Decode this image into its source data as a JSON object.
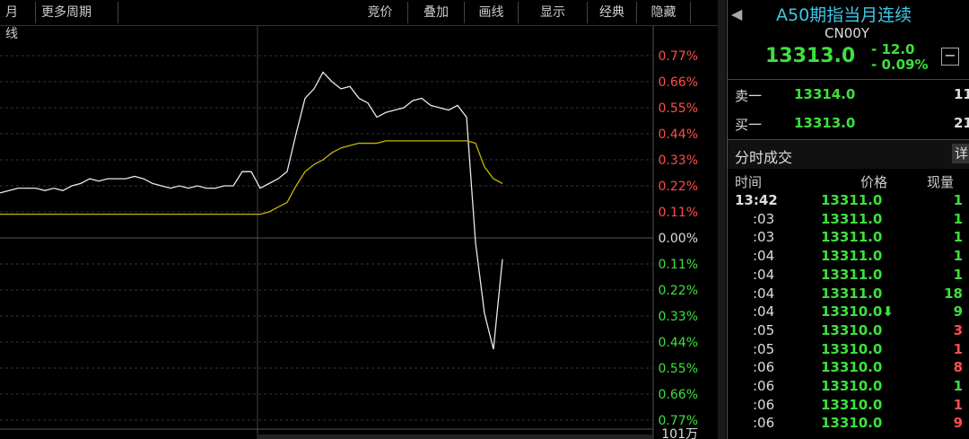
{
  "toolbar": {
    "left": [
      "月线",
      "更多周期"
    ],
    "right": [
      "竞价",
      "叠加",
      "画线",
      "显示",
      "经典",
      "隐藏"
    ]
  },
  "chart_data": {
    "type": "line",
    "series": [
      {
        "name": null,
        "color": "#e8e8e8",
        "values": [
          0.19,
          0.2,
          0.21,
          0.21,
          0.21,
          0.2,
          0.21,
          0.2,
          0.22,
          0.23,
          0.25,
          0.24,
          0.25,
          0.25,
          0.25,
          0.26,
          0.25,
          0.23,
          0.22,
          0.21,
          0.22,
          0.21,
          0.22,
          0.21,
          0.21,
          0.22,
          0.22,
          0.28,
          0.28,
          0.21,
          0.23,
          0.25,
          0.28,
          0.44,
          0.59,
          0.63,
          0.7,
          0.66,
          0.63,
          0.64,
          0.59,
          0.57,
          0.51,
          0.53,
          0.54,
          0.55,
          0.58,
          0.59,
          0.56,
          0.55,
          0.54,
          0.56,
          0.51,
          -0.02,
          -0.32,
          -0.47,
          -0.09
        ]
      },
      {
        "name": null,
        "color": "#c8b400",
        "values": [
          0.1,
          0.1,
          0.1,
          0.1,
          0.1,
          0.1,
          0.1,
          0.1,
          0.1,
          0.1,
          0.1,
          0.1,
          0.1,
          0.1,
          0.1,
          0.1,
          0.1,
          0.1,
          0.1,
          0.1,
          0.1,
          0.1,
          0.1,
          0.1,
          0.1,
          0.1,
          0.1,
          0.1,
          0.1,
          0.1,
          0.11,
          0.13,
          0.15,
          0.22,
          0.28,
          0.31,
          0.33,
          0.36,
          0.38,
          0.39,
          0.4,
          0.4,
          0.4,
          0.41,
          0.41,
          0.41,
          0.41,
          0.41,
          0.41,
          0.41,
          0.41,
          0.41,
          0.41,
          0.4,
          0.3,
          0.25,
          0.23
        ]
      }
    ],
    "ylim": [
      -0.77,
      0.77
    ],
    "yticks": [
      {
        "value": 0.77,
        "label": "0.77%"
      },
      {
        "value": 0.66,
        "label": "0.66%"
      },
      {
        "value": 0.55,
        "label": "0.55%"
      },
      {
        "value": 0.44,
        "label": "0.44%"
      },
      {
        "value": 0.33,
        "label": "0.33%"
      },
      {
        "value": 0.22,
        "label": "0.22%"
      },
      {
        "value": 0.11,
        "label": "0.11%"
      },
      {
        "value": 0,
        "label": "0.00%"
      },
      {
        "value": -0.11,
        "label": "0.11%"
      },
      {
        "value": -0.22,
        "label": "0.22%"
      },
      {
        "value": -0.33,
        "label": "0.33%"
      },
      {
        "value": -0.44,
        "label": "0.44%"
      },
      {
        "value": -0.55,
        "label": "0.55%"
      },
      {
        "value": -0.66,
        "label": "0.66%"
      },
      {
        "value": -0.77,
        "label": "0.77%"
      }
    ],
    "volume_label": "101万",
    "grid": true
  },
  "quote": {
    "title": "A50期指当月连续",
    "code": "CN00Y",
    "price": "13313.0",
    "change": "- 12.0",
    "change_pct": "- 0.09%",
    "ask": {
      "label": "卖一",
      "price": "13314.0",
      "qty": "11"
    },
    "bid": {
      "label": "买一",
      "price": "13313.0",
      "qty": "21"
    }
  },
  "ticks": {
    "title": "分时成交",
    "detail": "详",
    "headers": [
      "时间",
      "价格",
      "现量"
    ],
    "rows": [
      {
        "time": "13:42",
        "price": "13311.0",
        "qty": "1",
        "color": "green"
      },
      {
        "time": ":03",
        "price": "13311.0",
        "qty": "1",
        "color": "green"
      },
      {
        "time": ":03",
        "price": "13311.0",
        "qty": "1",
        "color": "green"
      },
      {
        "time": ":04",
        "price": "13311.0",
        "qty": "1",
        "color": "green"
      },
      {
        "time": ":04",
        "price": "13311.0",
        "qty": "1",
        "color": "green"
      },
      {
        "time": ":04",
        "price": "13311.0",
        "qty": "18",
        "color": "green"
      },
      {
        "time": ":04",
        "price": "13310.0⬇",
        "qty": "9",
        "color": "green"
      },
      {
        "time": ":05",
        "price": "13310.0",
        "qty": "3",
        "color": "red"
      },
      {
        "time": ":05",
        "price": "13310.0",
        "qty": "1",
        "color": "red"
      },
      {
        "time": ":06",
        "price": "13310.0",
        "qty": "8",
        "color": "red"
      },
      {
        "time": ":06",
        "price": "13310.0",
        "qty": "1",
        "color": "green"
      },
      {
        "time": ":06",
        "price": "13310.0",
        "qty": "1",
        "color": "red"
      },
      {
        "time": ":06",
        "price": "13310.0",
        "qty": "9",
        "color": "red"
      }
    ]
  }
}
